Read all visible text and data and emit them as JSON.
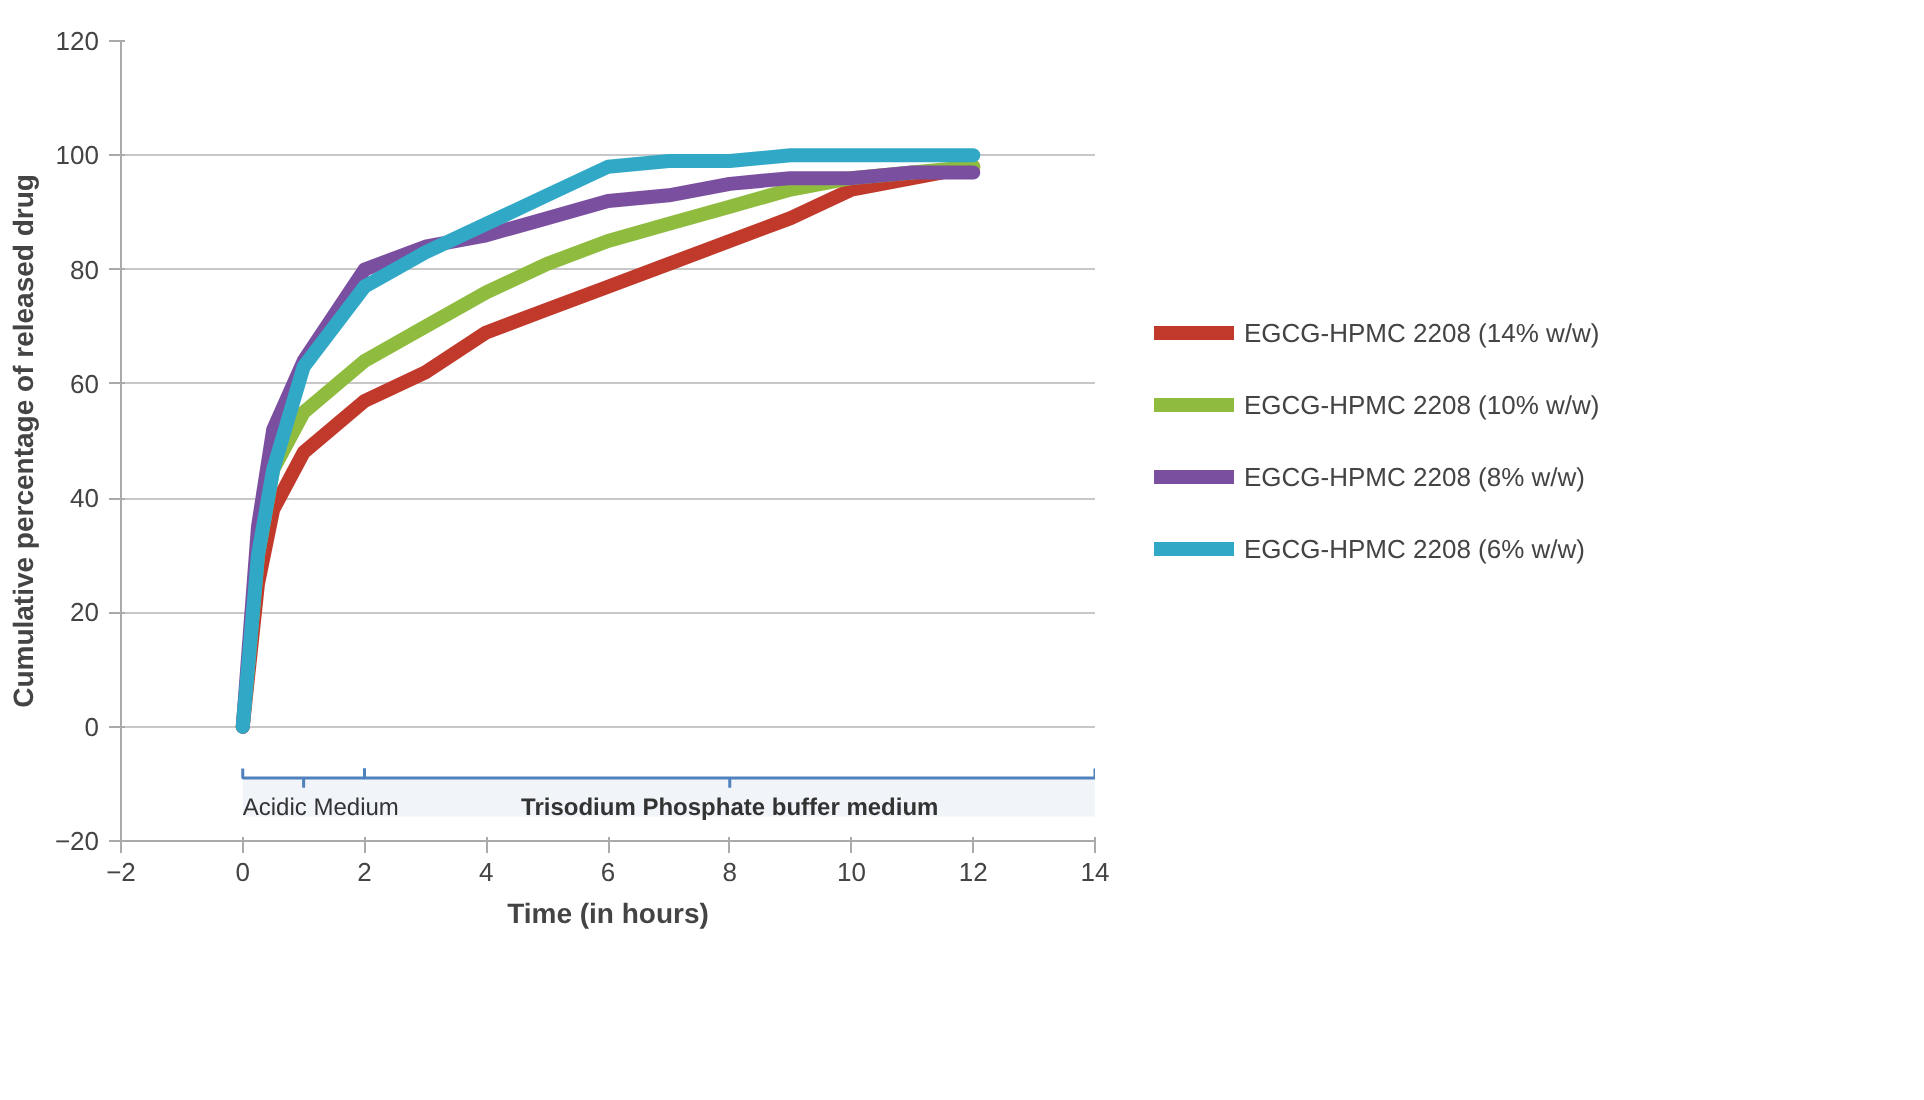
{
  "chart_data": {
    "type": "line",
    "xlabel": "Time (in hours)",
    "ylabel": "Cumulative percentage of released drug",
    "x": [
      0,
      0.25,
      0.5,
      1,
      2,
      3,
      4,
      5,
      6,
      7,
      8,
      9,
      10,
      11,
      12
    ],
    "series": [
      {
        "name": "EGCG-HPMC 2208 (14% w/w)",
        "color": "#c0392b",
        "values": [
          0,
          25,
          38,
          48,
          57,
          62,
          69,
          73,
          77,
          81,
          85,
          89,
          94,
          96,
          98
        ]
      },
      {
        "name": "EGCG-HPMC 2208 (10% w/w)",
        "color": "#8fbc3f",
        "values": [
          0,
          30,
          45,
          55,
          64,
          70,
          76,
          81,
          85,
          88,
          91,
          94,
          96,
          97,
          98
        ]
      },
      {
        "name": "EGCG-HPMC 2208 (8% w/w)",
        "color": "#7b4fa0",
        "values": [
          0,
          35,
          52,
          64,
          80,
          84,
          86,
          89,
          92,
          93,
          95,
          96,
          96,
          97,
          97
        ]
      },
      {
        "name": "EGCG-HPMC 2208 (6% w/w)",
        "color": "#31a9c6",
        "values": [
          0,
          30,
          45,
          63,
          77,
          83,
          88,
          93,
          98,
          99,
          99,
          100,
          100,
          100,
          100
        ]
      }
    ],
    "xlim": [
      -2,
      14
    ],
    "xticks": [
      -2,
      0,
      2,
      4,
      6,
      8,
      10,
      12,
      14
    ],
    "ylim": [
      -20,
      120
    ],
    "yticks": [
      -20,
      0,
      20,
      40,
      60,
      80,
      100,
      120
    ],
    "grid": "y",
    "legend": "right",
    "marker": "none",
    "line_style": "solid",
    "bands": [
      {
        "axis": "x",
        "from": 0,
        "to": 2,
        "label": "Acidic Medium",
        "color": "#4f81bd"
      },
      {
        "axis": "x",
        "from": 2,
        "to": 14,
        "label": "Trisodium Phosphate buffer medium",
        "color": "#4f81bd"
      }
    ]
  }
}
